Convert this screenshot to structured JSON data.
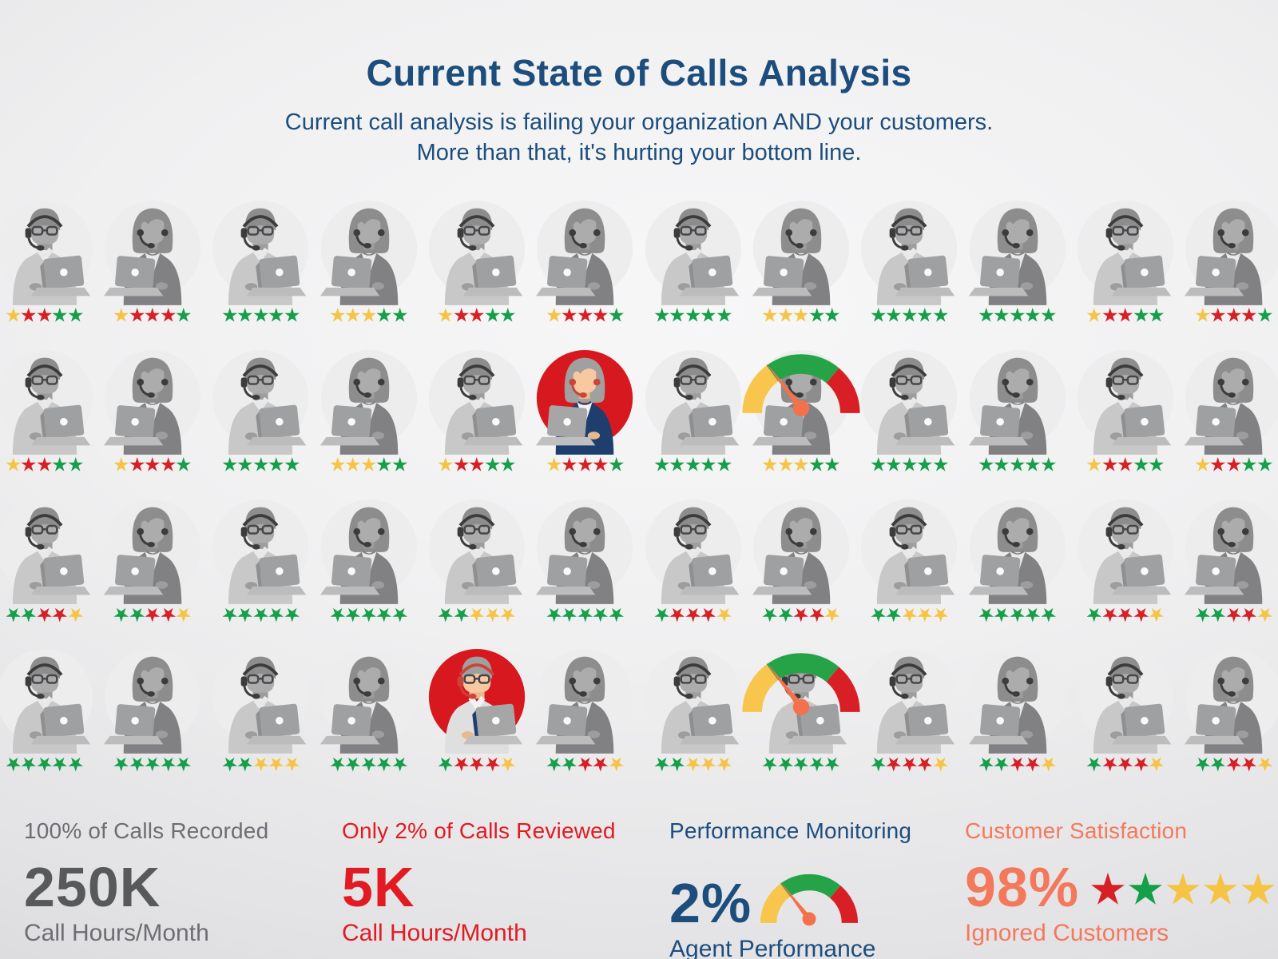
{
  "header": {
    "title": "Current State of Calls Analysis",
    "subtitle_line1": "Current call analysis is failing your organization AND your customers.",
    "subtitle_line2": "More than that, it's hurting your bottom line."
  },
  "colors": {
    "title_blue": "#1C4D7D",
    "text_gray": "#6D6E71",
    "text_gray_dark": "#58595B",
    "stat_red": "#E21B22",
    "stat_salmon": "#F4795C",
    "star_yellow": "#F6C444",
    "star_red": "#D71F26",
    "star_green": "#169F49",
    "gauge_yellow": "#F8C64D",
    "gauge_green": "#27A347",
    "gauge_red": "#D91F26",
    "needle_orange": "#F3714B",
    "highlight_red": "#D7181F"
  },
  "icons": {
    "gauge": "gauge-icon (semicircular yellow/green/red meter with orange needle)",
    "star": "star-icon (5-point spiky star)",
    "agent_male": "agent-male-icon (man with glasses, headset and laptop)",
    "agent_female": "agent-female-icon (woman with bob hair, headset and laptop)"
  },
  "grid": {
    "star_color_codes": {
      "Y": "yellow",
      "R": "red",
      "G": "green"
    },
    "rows": [
      {
        "name": "row-1",
        "inverted_stars": false,
        "agents": [
          {
            "gender": "male",
            "stars": "YRRGG"
          },
          {
            "gender": "female",
            "stars": "YRRRG"
          },
          {
            "gender": "male",
            "stars": "GGGGG"
          },
          {
            "gender": "female",
            "stars": "YYYGG"
          },
          {
            "gender": "male",
            "stars": "YRRGG"
          },
          {
            "gender": "female",
            "stars": "YRRRG"
          },
          {
            "gender": "male",
            "stars": "GGGGG"
          },
          {
            "gender": "female",
            "stars": "YYYGG"
          },
          {
            "gender": "male",
            "stars": "GGGGG"
          },
          {
            "gender": "female",
            "stars": "GGGGG"
          },
          {
            "gender": "male",
            "stars": "YRRGG"
          },
          {
            "gender": "female",
            "stars": "YRRRG"
          }
        ]
      },
      {
        "name": "row-2",
        "inverted_stars": false,
        "agents": [
          {
            "gender": "male",
            "stars": "YRRGG"
          },
          {
            "gender": "female",
            "stars": "YRRRG"
          },
          {
            "gender": "male",
            "stars": "GGGGG"
          },
          {
            "gender": "female",
            "stars": "YYYGG"
          },
          {
            "gender": "male",
            "stars": "YRRGG"
          },
          {
            "gender": "female",
            "stars": "YRRRG",
            "highlight": true
          },
          {
            "gender": "male",
            "stars": "GGGGG"
          },
          {
            "gender": "female",
            "stars": "YYYGG",
            "gauge": true
          },
          {
            "gender": "male",
            "stars": "GGGGG"
          },
          {
            "gender": "female",
            "stars": "GGGGG"
          },
          {
            "gender": "male",
            "stars": "YRRGG"
          },
          {
            "gender": "female",
            "stars": "YRRGG"
          }
        ]
      },
      {
        "name": "row-3",
        "inverted_stars": true,
        "agents": [
          {
            "gender": "male",
            "stars": "GGRRY"
          },
          {
            "gender": "female",
            "stars": "GGRRY"
          },
          {
            "gender": "male",
            "stars": "GGGGG"
          },
          {
            "gender": "female",
            "stars": "GGGGG"
          },
          {
            "gender": "male",
            "stars": "GGYYY"
          },
          {
            "gender": "female",
            "stars": "GGGGG"
          },
          {
            "gender": "male",
            "stars": "GRRRY"
          },
          {
            "gender": "female",
            "stars": "GGRRY"
          },
          {
            "gender": "male",
            "stars": "GGYYY"
          },
          {
            "gender": "female",
            "stars": "GGGGG"
          },
          {
            "gender": "male",
            "stars": "GRRRY"
          },
          {
            "gender": "female",
            "stars": "GGRRY"
          }
        ]
      },
      {
        "name": "row-4",
        "inverted_stars": true,
        "agents": [
          {
            "gender": "male",
            "stars": "GGGGG"
          },
          {
            "gender": "female",
            "stars": "GGGGG"
          },
          {
            "gender": "male",
            "stars": "GGYYY"
          },
          {
            "gender": "female",
            "stars": "GGGGG"
          },
          {
            "gender": "male",
            "stars": "GRRRY",
            "highlight": true
          },
          {
            "gender": "female",
            "stars": "GGRRY"
          },
          {
            "gender": "male",
            "stars": "GGYYY"
          },
          {
            "gender": "male",
            "stars": "GGGGG",
            "gauge": true
          },
          {
            "gender": "male",
            "stars": "GRRRY"
          },
          {
            "gender": "female",
            "stars": "GGRRY"
          },
          {
            "gender": "male",
            "stars": "GRRRY"
          },
          {
            "gender": "female",
            "stars": "GGRRY"
          }
        ]
      }
    ]
  },
  "stats": [
    {
      "label": "100% of Calls Recorded",
      "value": "250K",
      "sub": "Call Hours/Month"
    },
    {
      "label": "Only 2% of Calls Reviewed",
      "value": "5K",
      "sub": "Call Hours/Month"
    },
    {
      "label": "Performance Monitoring",
      "value": "2%",
      "sub": "Agent Performance",
      "icon": "gauge-icon"
    },
    {
      "label": "Customer Satisfaction",
      "value": "98%",
      "sub": "Ignored Customers",
      "stars": "RGYYY"
    }
  ],
  "chart_data": {
    "type": "table",
    "title": "Current State of Calls Analysis",
    "columns": [
      "metric",
      "value",
      "unit"
    ],
    "rows": [
      [
        "100% of Calls Recorded",
        "250K",
        "Call Hours/Month"
      ],
      [
        "Only 2% of Calls Reviewed",
        "5K",
        "Call Hours/Month"
      ],
      [
        "Performance Monitoring",
        "2%",
        "Agent Performance"
      ],
      [
        "Customer Satisfaction",
        "98%",
        "Ignored Customers"
      ]
    ]
  }
}
